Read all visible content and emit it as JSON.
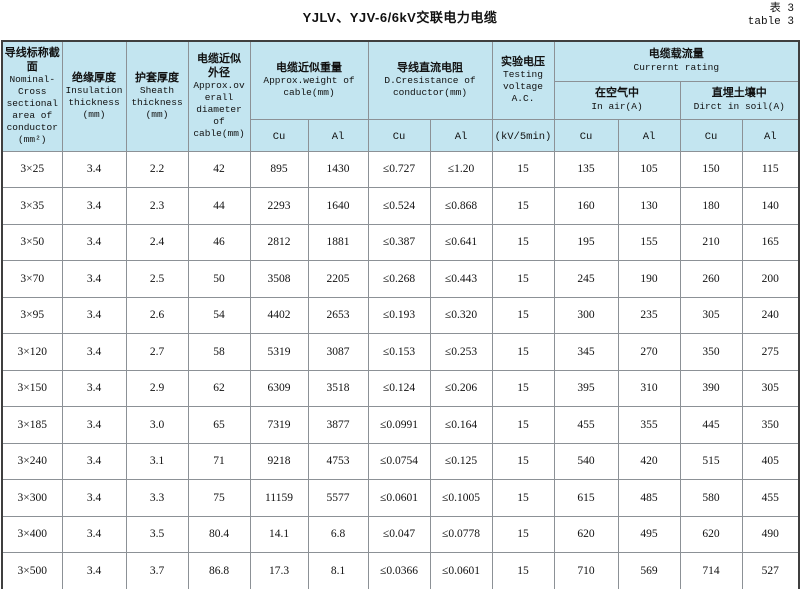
{
  "page": {
    "title": "YJLV、YJV-6/6kV交联电力电缆",
    "table_label_cn": "表 3",
    "table_label_en": "table 3"
  },
  "colors": {
    "header_bg": "#c3e5f0",
    "grid_line": "#8c9196",
    "outer_border": "#3f3f3f"
  },
  "header": {
    "area_cn": "导线标称截面",
    "area_en": "Nominal-\nCross\nsectional\narea of\nconductor\n(mm²)",
    "insulation_cn": "绝缘厚度",
    "insulation_en": "Insulation\nthickness\n(mm)",
    "sheath_cn": "护套厚度",
    "sheath_en": "Sheath\nthickness\n(mm)",
    "diameter_cn": "电缆近似\n外径",
    "diameter_en": "Approx.ov\nerall\ndiameter of\ncable(mm)",
    "weight_cn": "电缆近似重量",
    "weight_en": "Approx.weight of\ncable(mm)",
    "resistance_cn": "导线直流电阻",
    "resistance_en": "D.Cresistance of\nconductor(mm)",
    "voltage_cn": "实验电压",
    "voltage_en": "Testing\nvoltage\nA.C.",
    "voltage_unit": "(kV/5min)",
    "current_cn": "电缆载流量",
    "current_en": "Currernt rating",
    "air_cn": "在空气中",
    "air_en": "In air(A)",
    "soil_cn": "直埋土壤中",
    "soil_en": "Dirct in soil(A)",
    "cu": "Cu",
    "al": "Al"
  },
  "rows": [
    [
      "3×25",
      "3.4",
      "2.2",
      "42",
      "895",
      "1430",
      "≤0.727",
      "≤1.20",
      "15",
      "135",
      "105",
      "150",
      "115"
    ],
    [
      "3×35",
      "3.4",
      "2.3",
      "44",
      "2293",
      "1640",
      "≤0.524",
      "≤0.868",
      "15",
      "160",
      "130",
      "180",
      "140"
    ],
    [
      "3×50",
      "3.4",
      "2.4",
      "46",
      "2812",
      "1881",
      "≤0.387",
      "≤0.641",
      "15",
      "195",
      "155",
      "210",
      "165"
    ],
    [
      "3×70",
      "3.4",
      "2.5",
      "50",
      "3508",
      "2205",
      "≤0.268",
      "≤0.443",
      "15",
      "245",
      "190",
      "260",
      "200"
    ],
    [
      "3×95",
      "3.4",
      "2.6",
      "54",
      "4402",
      "2653",
      "≤0.193",
      "≤0.320",
      "15",
      "300",
      "235",
      "305",
      "240"
    ],
    [
      "3×120",
      "3.4",
      "2.7",
      "58",
      "5319",
      "3087",
      "≤0.153",
      "≤0.253",
      "15",
      "345",
      "270",
      "350",
      "275"
    ],
    [
      "3×150",
      "3.4",
      "2.9",
      "62",
      "6309",
      "3518",
      "≤0.124",
      "≤0.206",
      "15",
      "395",
      "310",
      "390",
      "305"
    ],
    [
      "3×185",
      "3.4",
      "3.0",
      "65",
      "7319",
      "3877",
      "≤0.0991",
      "≤0.164",
      "15",
      "455",
      "355",
      "445",
      "350"
    ],
    [
      "3×240",
      "3.4",
      "3.1",
      "71",
      "9218",
      "4753",
      "≤0.0754",
      "≤0.125",
      "15",
      "540",
      "420",
      "515",
      "405"
    ],
    [
      "3×300",
      "3.4",
      "3.3",
      "75",
      "11159",
      "5577",
      "≤0.0601",
      "≤0.1005",
      "15",
      "615",
      "485",
      "580",
      "455"
    ],
    [
      "3×400",
      "3.4",
      "3.5",
      "80.4",
      "14.1",
      "6.8",
      "≤0.047",
      "≤0.0778",
      "15",
      "620",
      "495",
      "620",
      "490"
    ],
    [
      "3×500",
      "3.4",
      "3.7",
      "86.8",
      "17.3",
      "8.1",
      "≤0.0366",
      "≤0.0601",
      "15",
      "710",
      "569",
      "714",
      "527"
    ]
  ]
}
